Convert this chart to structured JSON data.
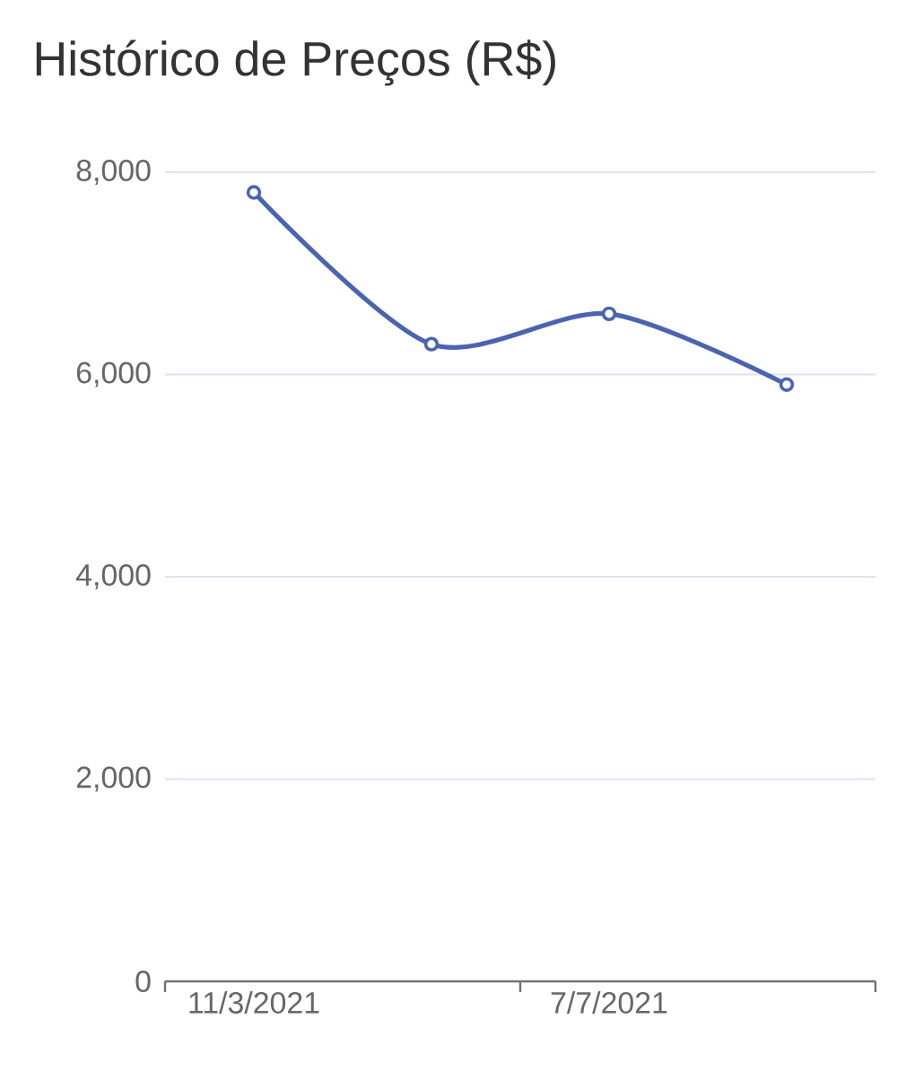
{
  "chart_data": {
    "type": "line",
    "title": "Histórico de Preços (R$)",
    "categories": [
      "11/3/2021",
      null,
      "7/7/2021",
      null
    ],
    "series": [
      {
        "color": "#4a64b0",
        "values": [
          7800,
          6300,
          6600,
          5900
        ]
      }
    ],
    "ylim": [
      0,
      8000
    ],
    "yticks": [
      0,
      {
        "value": 2000,
        "label": "2,000"
      },
      {
        "value": 4000,
        "label": "4,000"
      },
      {
        "value": 6000,
        "label": "6,000"
      },
      {
        "value": 8000,
        "label": "8,000"
      }
    ],
    "grid": "y",
    "marker": "circle",
    "line_style": "solid"
  }
}
